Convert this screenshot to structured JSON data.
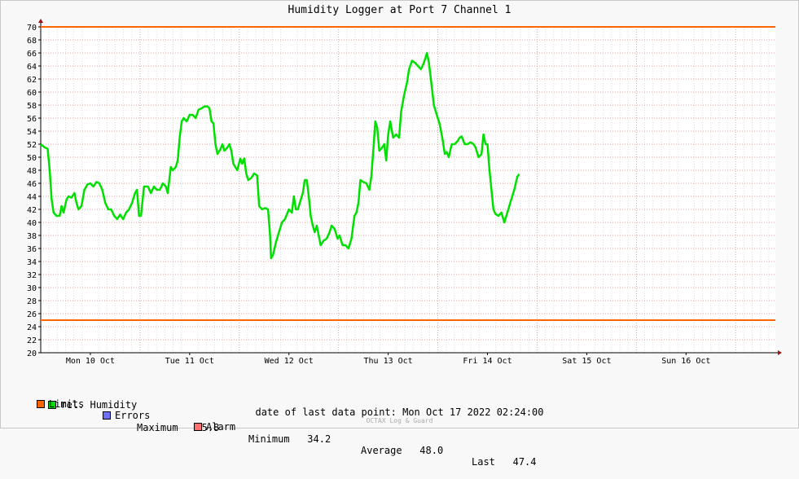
{
  "chart_data": {
    "type": "line",
    "title": "Humidity Logger at Port 7 Channel 1",
    "ylim": [
      20,
      70
    ],
    "yticks": [
      20,
      22,
      24,
      26,
      28,
      30,
      32,
      34,
      36,
      38,
      40,
      42,
      44,
      46,
      48,
      50,
      52,
      54,
      56,
      58,
      60,
      62,
      64,
      66,
      68,
      70
    ],
    "xlim": [
      0,
      7.4
    ],
    "days": [
      "Mon 10 Oct",
      "Tue 11 Oct",
      "Wed 12 Oct",
      "Thu 13 Oct",
      "Fri 14 Oct",
      "Sat 15 Oct",
      "Sun 16 Oct"
    ],
    "limits": [
      70,
      25
    ],
    "series": [
      {
        "name": "rel. Humidity",
        "color": "#00e000",
        "points": [
          [
            0.0,
            52.0
          ],
          [
            0.04,
            51.5
          ],
          [
            0.07,
            51.3
          ],
          [
            0.09,
            48.0
          ],
          [
            0.11,
            43.5
          ],
          [
            0.13,
            41.5
          ],
          [
            0.16,
            41.0
          ],
          [
            0.19,
            41.0
          ],
          [
            0.21,
            42.5
          ],
          [
            0.23,
            41.5
          ],
          [
            0.26,
            43.5
          ],
          [
            0.28,
            44.0
          ],
          [
            0.31,
            43.8
          ],
          [
            0.34,
            44.5
          ],
          [
            0.36,
            43.0
          ],
          [
            0.38,
            42.0
          ],
          [
            0.41,
            42.5
          ],
          [
            0.44,
            45.0
          ],
          [
            0.47,
            45.8
          ],
          [
            0.5,
            46.0
          ],
          [
            0.53,
            45.5
          ],
          [
            0.56,
            46.2
          ],
          [
            0.59,
            46.0
          ],
          [
            0.62,
            45.0
          ],
          [
            0.65,
            43.0
          ],
          [
            0.68,
            42.0
          ],
          [
            0.71,
            42.0
          ],
          [
            0.74,
            41.0
          ],
          [
            0.77,
            40.5
          ],
          [
            0.8,
            41.2
          ],
          [
            0.83,
            40.5
          ],
          [
            0.86,
            41.5
          ],
          [
            0.89,
            42.0
          ],
          [
            0.92,
            43.0
          ],
          [
            0.95,
            44.5
          ],
          [
            0.97,
            45.0
          ],
          [
            0.99,
            41.0
          ],
          [
            1.01,
            41.0
          ],
          [
            1.04,
            45.5
          ],
          [
            1.08,
            45.5
          ],
          [
            1.11,
            44.5
          ],
          [
            1.14,
            45.5
          ],
          [
            1.17,
            45.0
          ],
          [
            1.2,
            45.0
          ],
          [
            1.23,
            46.0
          ],
          [
            1.26,
            45.5
          ],
          [
            1.28,
            44.5
          ],
          [
            1.31,
            48.5
          ],
          [
            1.33,
            48.0
          ],
          [
            1.36,
            48.5
          ],
          [
            1.38,
            49.5
          ],
          [
            1.4,
            53.0
          ],
          [
            1.42,
            55.5
          ],
          [
            1.44,
            56.0
          ],
          [
            1.47,
            55.5
          ],
          [
            1.5,
            56.5
          ],
          [
            1.53,
            56.5
          ],
          [
            1.56,
            56.0
          ],
          [
            1.59,
            57.3
          ],
          [
            1.62,
            57.5
          ],
          [
            1.65,
            57.8
          ],
          [
            1.68,
            57.8
          ],
          [
            1.7,
            57.5
          ],
          [
            1.72,
            55.5
          ],
          [
            1.74,
            55.2
          ],
          [
            1.76,
            52.0
          ],
          [
            1.78,
            50.5
          ],
          [
            1.81,
            51.2
          ],
          [
            1.83,
            52.0
          ],
          [
            1.85,
            51.0
          ],
          [
            1.88,
            51.5
          ],
          [
            1.9,
            52.0
          ],
          [
            1.92,
            51.0
          ],
          [
            1.94,
            49.0
          ],
          [
            1.96,
            48.5
          ],
          [
            1.98,
            48.0
          ],
          [
            2.01,
            49.8
          ],
          [
            2.03,
            49.0
          ],
          [
            2.05,
            49.8
          ],
          [
            2.07,
            47.5
          ],
          [
            2.09,
            46.5
          ],
          [
            2.12,
            46.8
          ],
          [
            2.15,
            47.5
          ],
          [
            2.18,
            47.2
          ],
          [
            2.2,
            42.5
          ],
          [
            2.23,
            42.0
          ],
          [
            2.26,
            42.2
          ],
          [
            2.29,
            42.0
          ],
          [
            2.31,
            38.0
          ],
          [
            2.32,
            34.5
          ],
          [
            2.34,
            35.0
          ],
          [
            2.37,
            37.0
          ],
          [
            2.4,
            38.5
          ],
          [
            2.43,
            40.0
          ],
          [
            2.46,
            40.5
          ],
          [
            2.5,
            42.0
          ],
          [
            2.53,
            41.5
          ],
          [
            2.55,
            44.0
          ],
          [
            2.57,
            42.0
          ],
          [
            2.59,
            42.0
          ],
          [
            2.61,
            43.0
          ],
          [
            2.64,
            44.5
          ],
          [
            2.66,
            46.5
          ],
          [
            2.68,
            46.5
          ],
          [
            2.7,
            44.0
          ],
          [
            2.72,
            41.0
          ],
          [
            2.74,
            39.5
          ],
          [
            2.76,
            38.5
          ],
          [
            2.78,
            39.5
          ],
          [
            2.8,
            38.0
          ],
          [
            2.82,
            36.5
          ],
          [
            2.85,
            37.2
          ],
          [
            2.88,
            37.5
          ],
          [
            2.91,
            38.5
          ],
          [
            2.93,
            39.5
          ],
          [
            2.96,
            39.0
          ],
          [
            2.99,
            37.5
          ],
          [
            3.01,
            38.0
          ],
          [
            3.04,
            36.5
          ],
          [
            3.07,
            36.5
          ],
          [
            3.1,
            36.0
          ],
          [
            3.13,
            37.5
          ],
          [
            3.16,
            41.0
          ],
          [
            3.18,
            41.5
          ],
          [
            3.2,
            43.0
          ],
          [
            3.22,
            46.5
          ],
          [
            3.25,
            46.2
          ],
          [
            3.28,
            46.0
          ],
          [
            3.31,
            45.0
          ],
          [
            3.33,
            47.0
          ],
          [
            3.35,
            51.0
          ],
          [
            3.37,
            55.5
          ],
          [
            3.39,
            54.5
          ],
          [
            3.41,
            51.0
          ],
          [
            3.44,
            51.5
          ],
          [
            3.46,
            52.0
          ],
          [
            3.48,
            49.5
          ],
          [
            3.5,
            53.5
          ],
          [
            3.52,
            55.5
          ],
          [
            3.55,
            53.0
          ],
          [
            3.58,
            53.5
          ],
          [
            3.61,
            53.0
          ],
          [
            3.63,
            57.0
          ],
          [
            3.66,
            59.5
          ],
          [
            3.69,
            61.5
          ],
          [
            3.71,
            63.5
          ],
          [
            3.74,
            64.8
          ],
          [
            3.77,
            64.5
          ],
          [
            3.8,
            64.0
          ],
          [
            3.83,
            63.5
          ],
          [
            3.86,
            64.5
          ],
          [
            3.89,
            66.0
          ],
          [
            3.91,
            64.5
          ],
          [
            3.93,
            62.0
          ],
          [
            3.96,
            58.0
          ],
          [
            3.99,
            56.5
          ],
          [
            4.02,
            55.0
          ],
          [
            4.05,
            52.5
          ],
          [
            4.07,
            50.5
          ],
          [
            4.09,
            50.8
          ],
          [
            4.11,
            50.0
          ],
          [
            4.14,
            52.0
          ],
          [
            4.17,
            52.0
          ],
          [
            4.2,
            52.5
          ],
          [
            4.22,
            53.0
          ],
          [
            4.24,
            53.2
          ],
          [
            4.27,
            52.0
          ],
          [
            4.3,
            52.0
          ],
          [
            4.33,
            52.3
          ],
          [
            4.36,
            52.0
          ],
          [
            4.38,
            51.5
          ],
          [
            4.41,
            50.0
          ],
          [
            4.44,
            50.5
          ],
          [
            4.46,
            53.5
          ],
          [
            4.48,
            52.0
          ],
          [
            4.5,
            52.0
          ],
          [
            4.52,
            48.0
          ],
          [
            4.54,
            45.0
          ],
          [
            4.56,
            42.0
          ],
          [
            4.58,
            41.3
          ],
          [
            4.61,
            41.0
          ],
          [
            4.64,
            41.5
          ],
          [
            4.67,
            40.0
          ],
          [
            4.7,
            41.5
          ],
          [
            4.73,
            43.0
          ],
          [
            4.77,
            45.0
          ],
          [
            4.8,
            47.0
          ],
          [
            4.82,
            47.4
          ]
        ]
      }
    ]
  },
  "legend": {
    "series_label": "rel. Humidity",
    "max_label": "Maximum",
    "max_value": "65.8",
    "min_label": "Minimum",
    "min_value": "34.2",
    "avg_label": "Average",
    "avg_value": "48.0",
    "last_label": "Last",
    "last_value": "47.4",
    "limits_label": "Limits",
    "errors_label": "Errors",
    "alarm_label": "Alarm",
    "colors": {
      "humidity": "#00e000",
      "limits": "#ff6600",
      "errors": "#7070ff",
      "alarm": "#ff7070"
    }
  },
  "footer": {
    "last_point": "date of last data point:  Mon Oct 17 2022 02:24:00",
    "credit": "OCTAX Log & Guard"
  }
}
